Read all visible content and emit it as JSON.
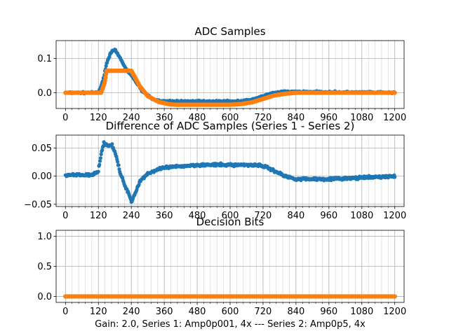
{
  "colors": {
    "series1": "#1f77b4",
    "series2": "#ff7f0e",
    "grid": "#b0b0b0"
  },
  "chart_data": [
    {
      "type": "scatter",
      "title": "ADC Samples",
      "xlabel": "",
      "xlim": [
        -34,
        1234
      ],
      "ylim": [
        -0.046,
        0.152
      ],
      "xticks": [
        0,
        120,
        240,
        360,
        480,
        600,
        720,
        840,
        960,
        1080,
        1200
      ],
      "xtick_labels": [
        "0",
        "120",
        "240",
        "360",
        "480",
        "600",
        "720",
        "840",
        "960",
        "1080",
        "1200"
      ],
      "yticks": [
        0.0,
        0.1
      ],
      "ytick_labels": [
        "0.0",
        "0.1"
      ],
      "grid": true,
      "series": [
        {
          "name": "Series 1",
          "x": [
            0,
            120,
            135,
            150,
            165,
            180,
            200,
            220,
            250,
            280,
            320,
            360,
            400,
            480,
            560,
            640,
            680,
            700,
            720,
            760,
            800,
            840,
            960,
            1080,
            1200
          ],
          "y": [
            0.0,
            0.0,
            0.03,
            0.085,
            0.118,
            0.125,
            0.1,
            0.07,
            0.04,
            0.005,
            -0.02,
            -0.025,
            -0.025,
            -0.025,
            -0.025,
            -0.025,
            -0.02,
            -0.015,
            -0.01,
            0.0,
            0.003,
            0.003,
            0.002,
            0.001,
            0.0
          ]
        },
        {
          "name": "Series 2",
          "x": [
            0,
            130,
            143,
            150,
            160,
            240,
            250,
            270,
            300,
            340,
            380,
            400,
            480,
            560,
            600,
            640,
            680,
            720,
            760,
            800,
            840,
            880,
            960,
            1080,
            1200
          ],
          "y": [
            0.0,
            0.0,
            0.03,
            0.064,
            0.064,
            0.064,
            0.05,
            0.02,
            -0.01,
            -0.027,
            -0.034,
            -0.035,
            -0.035,
            -0.035,
            -0.035,
            -0.033,
            -0.028,
            -0.018,
            -0.008,
            -0.003,
            0.0,
            0.0,
            0.0,
            0.0,
            0.0
          ]
        }
      ]
    },
    {
      "type": "scatter",
      "title": "Difference of ADC Samples (Series 1 - Series 2)",
      "xlabel": "",
      "xlim": [
        -34,
        1234
      ],
      "ylim": [
        -0.054,
        0.073
      ],
      "xticks": [
        0,
        120,
        240,
        360,
        480,
        600,
        720,
        840,
        960,
        1080,
        1200
      ],
      "xtick_labels": [
        "0",
        "120",
        "240",
        "360",
        "480",
        "600",
        "720",
        "840",
        "960",
        "1080",
        "1200"
      ],
      "yticks": [
        -0.05,
        0.0,
        0.05
      ],
      "ytick_labels": [
        "−0.05",
        "0.00",
        "0.05"
      ],
      "grid": true,
      "series": [
        {
          "name": "Series 1 - Series 2",
          "x": [
            0,
            100,
            120,
            130,
            140,
            155,
            170,
            185,
            200,
            215,
            230,
            240,
            255,
            270,
            300,
            360,
            480,
            600,
            700,
            720,
            760,
            800,
            840,
            960,
            1080,
            1200
          ],
          "y": [
            0.002,
            0.002,
            0.01,
            0.04,
            0.058,
            0.055,
            0.055,
            0.035,
            0.005,
            -0.015,
            -0.03,
            -0.045,
            -0.03,
            -0.01,
            0.005,
            0.015,
            0.02,
            0.02,
            0.02,
            0.018,
            0.01,
            0.0,
            -0.005,
            -0.005,
            -0.003,
            0.0
          ]
        }
      ]
    },
    {
      "type": "scatter",
      "title": "Decision Bits",
      "xlabel": "Gain: 2.0, Series 1: Amp0p001, 4x --- Series 2: Amp0p5, 4x",
      "xlim": [
        -34,
        1234
      ],
      "ylim": [
        -0.1,
        1.1
      ],
      "xticks": [
        0,
        120,
        240,
        360,
        480,
        600,
        720,
        840,
        960,
        1080,
        1200
      ],
      "xtick_labels": [
        "0",
        "120",
        "240",
        "360",
        "480",
        "600",
        "720",
        "840",
        "960",
        "1080",
        "1200"
      ],
      "yticks": [
        0.0,
        0.5,
        1.0
      ],
      "ytick_labels": [
        "0.0",
        "0.5",
        "1.0"
      ],
      "grid": true,
      "series": [
        {
          "name": "Series 1",
          "x": [
            0,
            1200
          ],
          "y": [
            0,
            0
          ]
        },
        {
          "name": "Series 2",
          "x": [
            0,
            1200
          ],
          "y": [
            0,
            0
          ]
        }
      ]
    }
  ]
}
